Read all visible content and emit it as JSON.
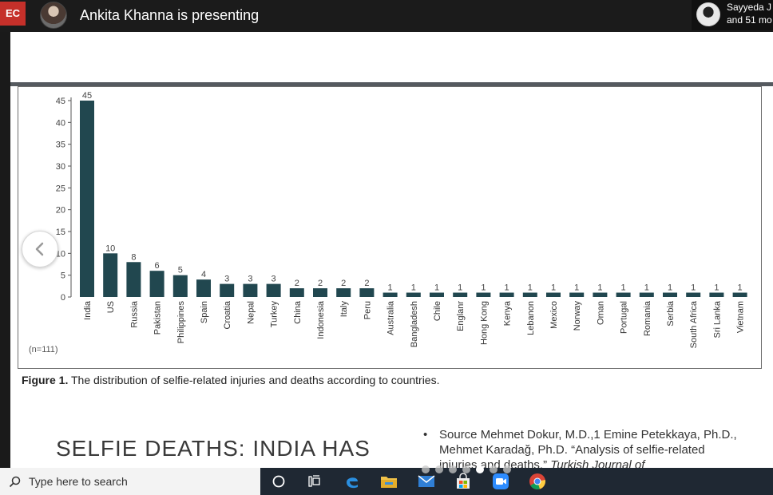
{
  "meeting": {
    "rec_label": "EC",
    "presenter_text": "Ankita Khanna is presenting",
    "participant_name": "Sayyeda J",
    "participant_more": "and 51 mo"
  },
  "slide": {
    "n_label": "(n=111)",
    "caption_bold": "Figure 1.",
    "caption_text": " The distribution of selfie-related injuries and deaths according to countries.",
    "headline": "SELFIE DEATHS: INDIA HAS",
    "source_bullet": "•",
    "source_text": "Source Mehmet Dokur, M.D.,1 Emine Petekkaya, Ph.D., Mehmet Karadağ, Ph.D. “Analysis of selfie-related injuries and deaths.”",
    "source_journal": "Turkish Journal of"
  },
  "chart_data": {
    "type": "bar",
    "categories": [
      "India",
      "US",
      "Russia",
      "Pakistan",
      "Philippines",
      "Spain",
      "Croatia",
      "Nepal",
      "Turkey",
      "China",
      "Indonesia",
      "Italy",
      "Peru",
      "Australia",
      "Bangladesh",
      "Chile",
      "Englanr",
      "Hong Kong",
      "Kenya",
      "Lebanon",
      "Mexico",
      "Norway",
      "Oman",
      "Portugal",
      "Romania",
      "Serbia",
      "South Africa",
      "Sri Lanka",
      "Vietnam"
    ],
    "values": [
      45,
      10,
      8,
      6,
      5,
      4,
      3,
      3,
      3,
      2,
      2,
      2,
      2,
      1,
      1,
      1,
      1,
      1,
      1,
      1,
      1,
      1,
      1,
      1,
      1,
      1,
      1,
      1,
      1
    ],
    "yticks": [
      0,
      5,
      10,
      15,
      20,
      25,
      30,
      35,
      40,
      45
    ],
    "ylim": [
      0,
      45
    ],
    "bar_color": "#21474f"
  },
  "taskbar": {
    "search_placeholder": "Type here to search",
    "icons": [
      "cortana-icon",
      "task-view-icon",
      "edge-icon",
      "file-explorer-icon",
      "mail-icon",
      "store-icon",
      "zoom-icon",
      "chrome-icon"
    ]
  }
}
